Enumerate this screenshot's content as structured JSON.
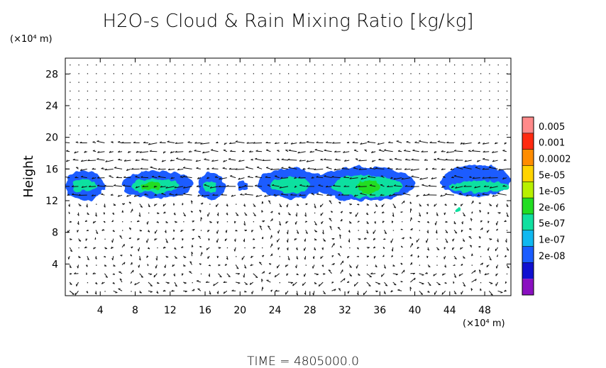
{
  "chart_data": {
    "type": "heatmap",
    "title": "H2O-s Cloud & Rain Mixing Ratio [kg/kg]",
    "ylabel": "Height",
    "y_unit": "(×10⁴ m)",
    "x_unit": "(×10⁴ m)",
    "xlim": [
      0,
      51
    ],
    "ylim": [
      0,
      30
    ],
    "x_ticks": [
      "4",
      "8",
      "12",
      "16",
      "20",
      "24",
      "28",
      "32",
      "36",
      "40",
      "44",
      "48"
    ],
    "x_tick_values": [
      4,
      8,
      12,
      16,
      20,
      24,
      28,
      32,
      36,
      40,
      44,
      48
    ],
    "y_ticks": [
      "4",
      "8",
      "12",
      "16",
      "20",
      "24",
      "28"
    ],
    "y_tick_values": [
      4,
      8,
      12,
      16,
      20,
      24,
      28
    ],
    "grid": false,
    "overlay": "wind vector arrows",
    "colorbar": {
      "labels": [
        "0.005",
        "0.001",
        "0.0002",
        "5e-05",
        "1e-05",
        "2e-06",
        "5e-07",
        "1e-07",
        "2e-08"
      ],
      "colors": [
        "#ff8a8a",
        "#ff2a10",
        "#ff8c00",
        "#ffd400",
        "#b8f000",
        "#22dd22",
        "#10e0a0",
        "#10b8f0",
        "#1a5cff",
        "#1010d0",
        "#8a10c0"
      ]
    },
    "cloud_patches": [
      {
        "x": 0.0,
        "w": 4.4,
        "y": 12.0,
        "h": 3.8,
        "level": 8
      },
      {
        "x": 0.8,
        "w": 2.8,
        "y": 13.2,
        "h": 1.5,
        "level": 6
      },
      {
        "x": 6.5,
        "w": 8.0,
        "y": 12.3,
        "h": 3.5,
        "level": 8
      },
      {
        "x": 7.5,
        "w": 5.5,
        "y": 13.0,
        "h": 1.8,
        "level": 6
      },
      {
        "x": 8.5,
        "w": 2.5,
        "y": 13.3,
        "h": 1.0,
        "level": 5
      },
      {
        "x": 15.2,
        "w": 3.0,
        "y": 12.2,
        "h": 3.3,
        "level": 8
      },
      {
        "x": 15.8,
        "w": 1.5,
        "y": 13.0,
        "h": 1.5,
        "level": 6
      },
      {
        "x": 19.7,
        "w": 1.2,
        "y": 13.2,
        "h": 1.3,
        "level": 8
      },
      {
        "x": 22.0,
        "w": 7.5,
        "y": 12.3,
        "h": 3.7,
        "level": 8
      },
      {
        "x": 23.5,
        "w": 4.5,
        "y": 13.0,
        "h": 2.0,
        "level": 6
      },
      {
        "x": 28.5,
        "w": 11.5,
        "y": 12.0,
        "h": 4.3,
        "level": 8
      },
      {
        "x": 30.5,
        "w": 8.0,
        "y": 12.4,
        "h": 2.8,
        "level": 6
      },
      {
        "x": 33.5,
        "w": 2.5,
        "y": 12.8,
        "h": 1.8,
        "level": 5
      },
      {
        "x": 43.0,
        "w": 8.0,
        "y": 12.5,
        "h": 4.0,
        "level": 8
      },
      {
        "x": 44.0,
        "w": 6.8,
        "y": 13.0,
        "h": 1.5,
        "level": 6
      },
      {
        "x": 44.5,
        "w": 0.7,
        "y": 10.6,
        "h": 0.6,
        "level": 6
      }
    ],
    "footer": "TIME  =  4805000.0"
  }
}
